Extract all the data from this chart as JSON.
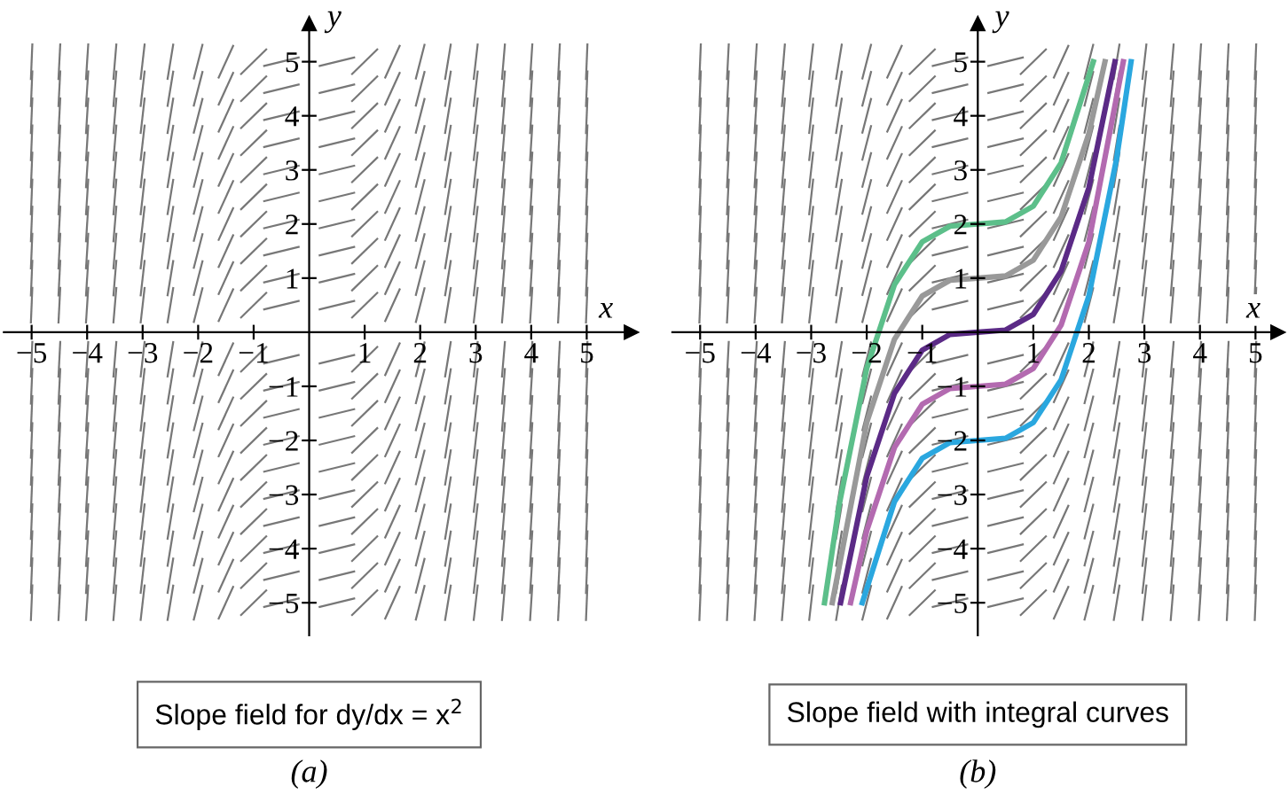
{
  "chart_data": [
    {
      "type": "line",
      "xlabel": "x",
      "ylabel": "y",
      "xlim": [
        -5.5,
        5.8
      ],
      "ylim": [
        -5.6,
        5.7
      ],
      "xticks": [
        -5,
        -4,
        -3,
        -2,
        -1,
        1,
        2,
        3,
        4,
        5
      ],
      "yticks": [
        -5,
        -4,
        -3,
        -2,
        -1,
        1,
        2,
        3,
        4,
        5
      ],
      "grid": false,
      "annotations": [
        "Slope field for dy/dx = x$^{2}$",
        "(a)"
      ]
    },
    {
      "type": "line",
      "xlabel": "x",
      "ylabel": "y",
      "xlim": [
        -5.5,
        5.4
      ],
      "ylim": [
        -5.6,
        5.7
      ],
      "xticks": [
        -5,
        -4,
        -3,
        -2,
        -1,
        1,
        2,
        3,
        4,
        5
      ],
      "yticks": [
        -5,
        -4,
        -3,
        -2,
        -1,
        1,
        2,
        3,
        4,
        5
      ],
      "grid": false,
      "legend": false,
      "marker": "none",
      "line_style": "solid",
      "series": [
        {
          "color": "#5cbf8a",
          "x": [
            -2.76,
            -2.5,
            -2,
            -1.5,
            -1,
            -0.5,
            0,
            0.5,
            1,
            1.5,
            2.08
          ],
          "values": [
            -5,
            -3.21,
            -0.67,
            0.88,
            1.67,
            1.96,
            2,
            2.04,
            2.33,
            3.13,
            5
          ]
        },
        {
          "color": "#999999",
          "x": [
            -2.62,
            -2,
            -1.5,
            -1,
            -0.5,
            0,
            0.5,
            1,
            1.5,
            2,
            2.29
          ],
          "values": [
            -5,
            -1.67,
            -0.13,
            0.67,
            0.96,
            1,
            1.04,
            1.33,
            2.13,
            3.67,
            5
          ]
        },
        {
          "color": "#5b2a86",
          "x": [
            -2.47,
            -2,
            -1.5,
            -1,
            -0.5,
            0,
            0.5,
            1,
            1.5,
            2,
            2.47
          ],
          "values": [
            -5,
            -2.67,
            -1.13,
            -0.33,
            -0.04,
            0,
            0.04,
            0.33,
            1.13,
            2.67,
            5
          ]
        },
        {
          "color": "#b36ab0",
          "x": [
            -2.29,
            -2,
            -1.5,
            -1,
            -0.5,
            0,
            0.5,
            1,
            1.5,
            2,
            2.62
          ],
          "values": [
            -5,
            -3.67,
            -2.13,
            -1.33,
            -1.04,
            -1,
            -0.96,
            -0.67,
            0.13,
            1.67,
            5
          ]
        },
        {
          "color": "#2aa7df",
          "x": [
            -2.08,
            -1.5,
            -1,
            -0.5,
            0,
            0.5,
            1,
            1.5,
            2,
            2.5,
            2.76
          ],
          "values": [
            -5,
            -3.13,
            -2.33,
            -2.04,
            -2,
            -1.96,
            -1.67,
            -0.88,
            0.67,
            3.21,
            5
          ]
        }
      ],
      "annotations": [
        "Slope field with integral curves",
        "(b)"
      ]
    }
  ]
}
